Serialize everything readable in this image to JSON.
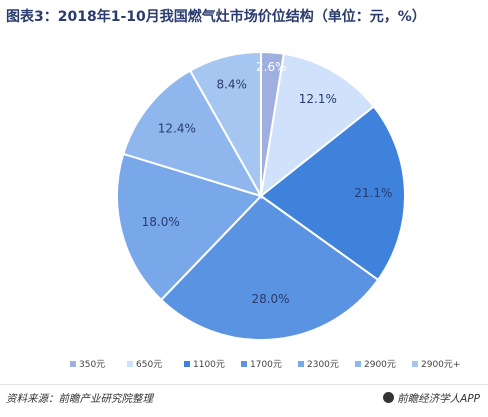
{
  "chart_data": {
    "type": "pie",
    "title": "图表3：2018年1-10月我国燃气灶市场价位结构（单位：元，%）",
    "categories": [
      "350元",
      "650元",
      "1100元",
      "1700元",
      "2300元",
      "2900元",
      "2900元+"
    ],
    "values": [
      2.6,
      12.1,
      21.1,
      28.0,
      18.0,
      12.4,
      8.4
    ],
    "value_labels": [
      "2.6%",
      "12.1%",
      "21.1%",
      "28.0%",
      "18.0%",
      "12.4%",
      "8.4%"
    ],
    "colors": [
      "#9fb0e0",
      "#cfe1fb",
      "#3f82dc",
      "#5b93e3",
      "#78a7ea",
      "#8fb6ed",
      "#a6c6f2"
    ],
    "legend_position": "bottom"
  },
  "footer": {
    "source": "资料来源：前瞻产业研究院整理",
    "brand": "前瞻经济学人APP"
  }
}
